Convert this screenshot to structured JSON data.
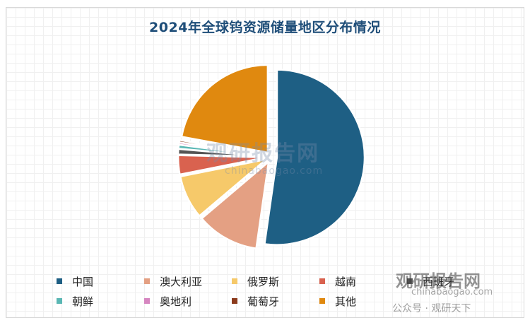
{
  "chart_data": {
    "type": "pie",
    "title": "2024年全球钨资源储量地区分布情况",
    "categories": [
      "中国",
      "澳大利亚",
      "俄罗斯",
      "越南",
      "西班牙",
      "朝鲜",
      "奥地利",
      "葡萄牙",
      "其他"
    ],
    "values": [
      52,
      11.5,
      8,
      3.5,
      1,
      0.7,
      0.4,
      0.4,
      22
    ],
    "colors": [
      "#1e5f84",
      "#e4a083",
      "#f6c96a",
      "#d9624f",
      "#555555",
      "#5ab7b4",
      "#d686c0",
      "#8b3a1c",
      "#e0890f"
    ],
    "legend_position": "bottom",
    "legend_labels": [
      "中国",
      "澳大利亚",
      "俄罗斯",
      "越南",
      "西班牙",
      "朝鲜",
      "奥地利",
      "葡萄牙",
      "其他"
    ]
  },
  "watermarks": {
    "center_main": "观研报告网",
    "center_sub": "chinabaogao.com",
    "corner_main": "观研报告网",
    "corner_sub": "chinabaogao.com",
    "wechat": "公众号 · 观研天下"
  }
}
